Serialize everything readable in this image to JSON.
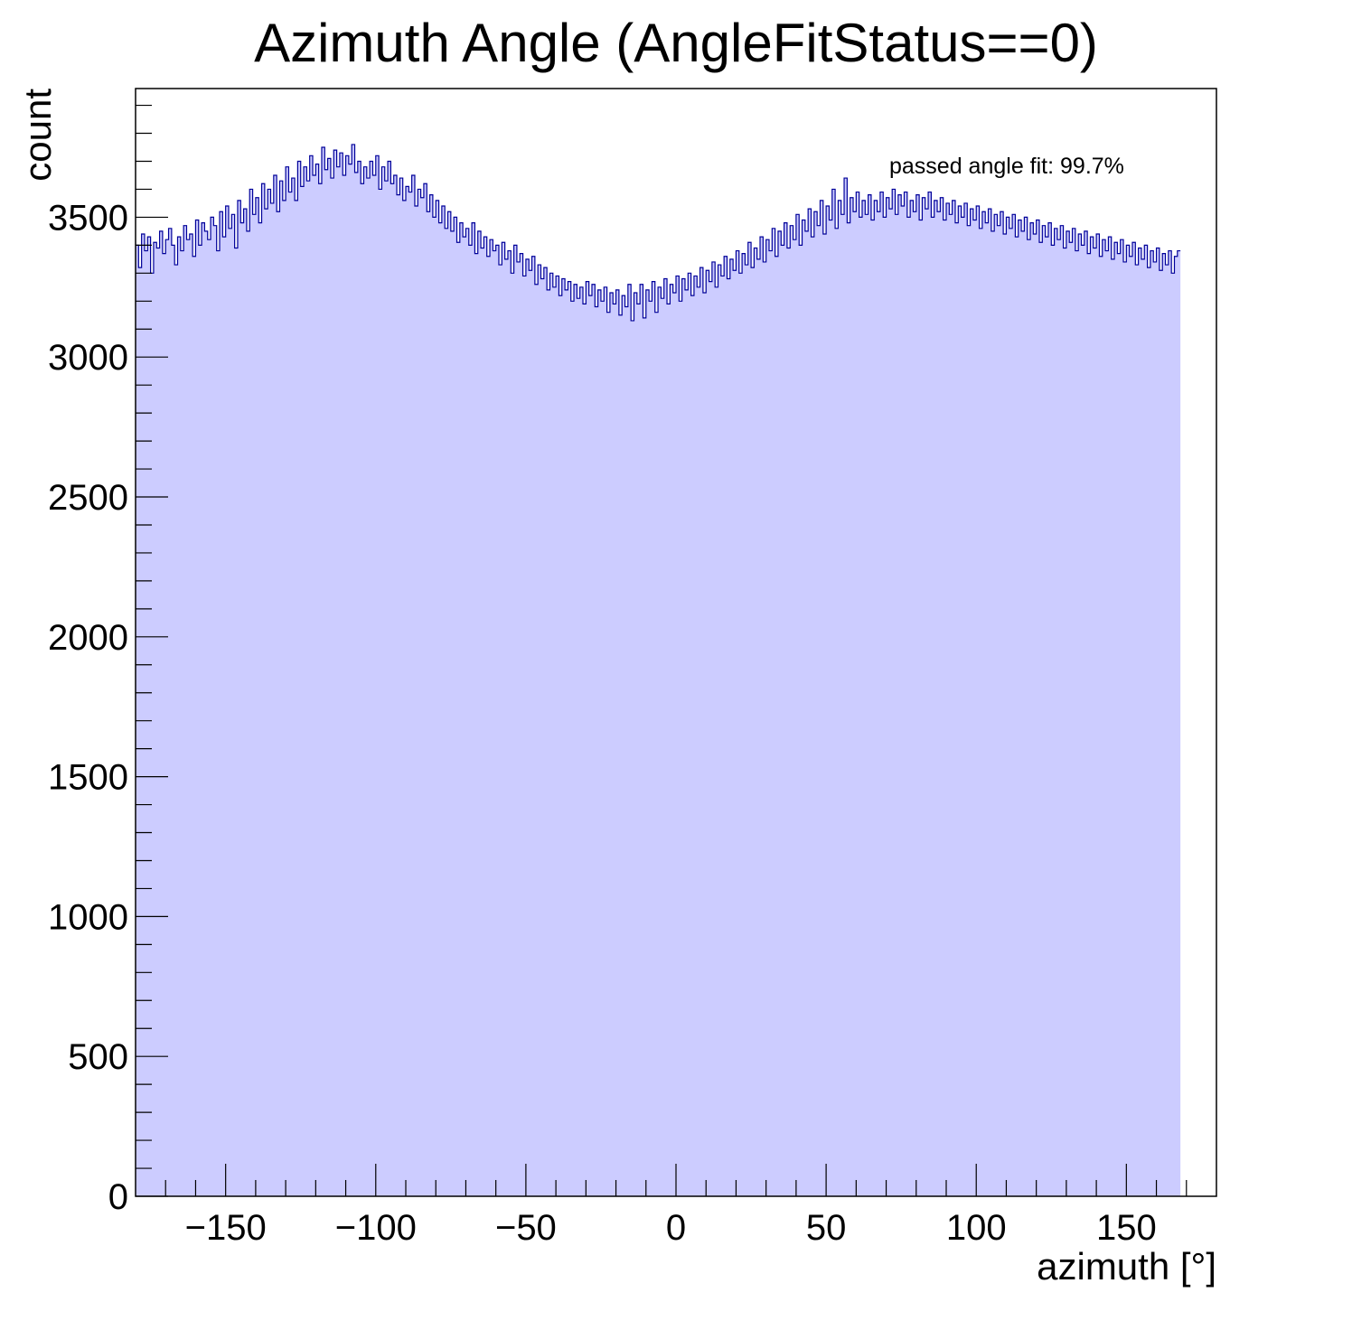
{
  "chart_data": {
    "type": "histogram",
    "title": "Azimuth Angle (AngleFitStatus==0)",
    "xlabel": "azimuth [°]",
    "ylabel": "count",
    "xlim": [
      -180,
      180
    ],
    "ylim": [
      0,
      3960
    ],
    "x_ticks": [
      -150,
      -100,
      -50,
      0,
      50,
      100,
      150
    ],
    "x_tick_labels": [
      "−150",
      "−100",
      "−50",
      "0",
      "50",
      "100",
      "150"
    ],
    "y_ticks": [
      0,
      500,
      1000,
      1500,
      2000,
      2500,
      3000,
      3500
    ],
    "y_tick_labels": [
      "0",
      "500",
      "1000",
      "1500",
      "2000",
      "2500",
      "3000",
      "3500"
    ],
    "annotation": "passed angle fit: 99.7%",
    "grid": false,
    "legend": "none",
    "colors": {
      "fill": "#ccccff",
      "line": "#000099",
      "frame": "#000000"
    },
    "series": [
      {
        "bin_width": 1,
        "x_start": -180,
        "values": [
          3400,
          3320,
          3440,
          3380,
          3430,
          3300,
          3410,
          3390,
          3450,
          3370,
          3420,
          3460,
          3400,
          3330,
          3430,
          3380,
          3470,
          3420,
          3440,
          3360,
          3490,
          3400,
          3480,
          3450,
          3420,
          3500,
          3470,
          3380,
          3520,
          3430,
          3540,
          3460,
          3510,
          3390,
          3560,
          3480,
          3530,
          3450,
          3600,
          3510,
          3570,
          3480,
          3620,
          3530,
          3600,
          3550,
          3650,
          3520,
          3630,
          3560,
          3680,
          3590,
          3640,
          3560,
          3700,
          3610,
          3680,
          3630,
          3720,
          3650,
          3690,
          3620,
          3750,
          3670,
          3710,
          3640,
          3740,
          3680,
          3730,
          3650,
          3720,
          3690,
          3760,
          3660,
          3700,
          3620,
          3680,
          3640,
          3700,
          3650,
          3720,
          3600,
          3680,
          3630,
          3700,
          3620,
          3650,
          3580,
          3640,
          3560,
          3610,
          3590,
          3650,
          3540,
          3600,
          3570,
          3620,
          3520,
          3580,
          3500,
          3560,
          3480,
          3540,
          3460,
          3520,
          3450,
          3500,
          3410,
          3480,
          3430,
          3460,
          3400,
          3480,
          3370,
          3450,
          3390,
          3430,
          3360,
          3420,
          3380,
          3400,
          3330,
          3410,
          3350,
          3380,
          3300,
          3400,
          3340,
          3370,
          3290,
          3350,
          3310,
          3360,
          3260,
          3330,
          3280,
          3320,
          3240,
          3300,
          3250,
          3290,
          3220,
          3280,
          3240,
          3270,
          3200,
          3260,
          3210,
          3250,
          3190,
          3270,
          3220,
          3260,
          3180,
          3240,
          3200,
          3250,
          3160,
          3230,
          3190,
          3240,
          3150,
          3220,
          3180,
          3260,
          3130,
          3230,
          3190,
          3260,
          3140,
          3240,
          3200,
          3270,
          3160,
          3250,
          3210,
          3280,
          3190,
          3260,
          3230,
          3290,
          3200,
          3280,
          3240,
          3300,
          3220,
          3290,
          3250,
          3320,
          3230,
          3310,
          3270,
          3340,
          3250,
          3330,
          3290,
          3360,
          3280,
          3350,
          3310,
          3380,
          3300,
          3370,
          3330,
          3410,
          3320,
          3390,
          3350,
          3430,
          3340,
          3420,
          3380,
          3460,
          3360,
          3450,
          3400,
          3480,
          3390,
          3470,
          3420,
          3510,
          3400,
          3490,
          3450,
          3530,
          3430,
          3520,
          3470,
          3560,
          3440,
          3540,
          3490,
          3600,
          3460,
          3560,
          3510,
          3640,
          3480,
          3570,
          3520,
          3590,
          3500,
          3560,
          3510,
          3580,
          3490,
          3560,
          3520,
          3590,
          3500,
          3570,
          3530,
          3600,
          3510,
          3580,
          3540,
          3590,
          3500,
          3560,
          3520,
          3580,
          3490,
          3570,
          3530,
          3590,
          3500,
          3560,
          3520,
          3570,
          3490,
          3550,
          3510,
          3560,
          3480,
          3540,
          3500,
          3550,
          3470,
          3530,
          3490,
          3540,
          3460,
          3520,
          3480,
          3530,
          3450,
          3510,
          3470,
          3520,
          3440,
          3500,
          3460,
          3510,
          3430,
          3490,
          3450,
          3500,
          3420,
          3480,
          3440,
          3490,
          3410,
          3470,
          3430,
          3480,
          3400,
          3460,
          3420,
          3470,
          3390,
          3450,
          3410,
          3460,
          3380,
          3440,
          3400,
          3450,
          3370,
          3430,
          3390,
          3440,
          3360,
          3420,
          3380,
          3430,
          3350,
          3410,
          3370,
          3420,
          3340,
          3400,
          3360,
          3410,
          3330,
          3390,
          3350,
          3400,
          3320,
          3380,
          3340,
          3390,
          3310,
          3370,
          3330,
          3380,
          3300,
          3360,
          3380
        ]
      }
    ]
  }
}
